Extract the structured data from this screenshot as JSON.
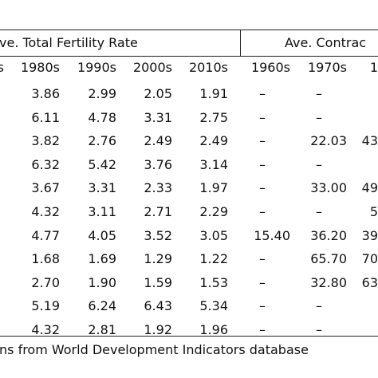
{
  "table": {
    "group_headers": {
      "fertility": "ve. Total Fertility Rate",
      "contraceptive": "Ave. Contrac"
    },
    "column_headers": [
      "s",
      "1980s",
      "1990s",
      "2000s",
      "2010s",
      "1960s",
      "1970s",
      "1"
    ],
    "rows": [
      [
        "",
        "3.86",
        "2.99",
        "2.05",
        "1.91",
        "–",
        "–",
        ""
      ],
      [
        "",
        "6.11",
        "4.78",
        "3.31",
        "2.75",
        "–",
        "–",
        ""
      ],
      [
        "",
        "3.82",
        "2.76",
        "2.49",
        "2.49",
        "–",
        "22.03",
        "43"
      ],
      [
        "",
        "6.32",
        "5.42",
        "3.76",
        "3.14",
        "–",
        "–",
        ""
      ],
      [
        "",
        "3.67",
        "3.31",
        "2.33",
        "1.97",
        "–",
        "33.00",
        "49"
      ],
      [
        "",
        "4.32",
        "3.11",
        "2.71",
        "2.29",
        "–",
        "–",
        "5"
      ],
      [
        "",
        "4.77",
        "4.05",
        "3.52",
        "3.05",
        "15.40",
        "36.20",
        "39"
      ],
      [
        "",
        "1.68",
        "1.69",
        "1.29",
        "1.22",
        "–",
        "65.70",
        "70"
      ],
      [
        "",
        "2.70",
        "1.90",
        "1.59",
        "1.53",
        "–",
        "32.80",
        "63"
      ],
      [
        "",
        "5.19",
        "6.24",
        "6.43",
        "5.34",
        "–",
        "–",
        ""
      ],
      [
        "",
        "4.32",
        "2.81",
        "1.92",
        "1.96",
        "–",
        "–",
        ""
      ]
    ],
    "source_note": "ns from World Development Indicators database"
  }
}
